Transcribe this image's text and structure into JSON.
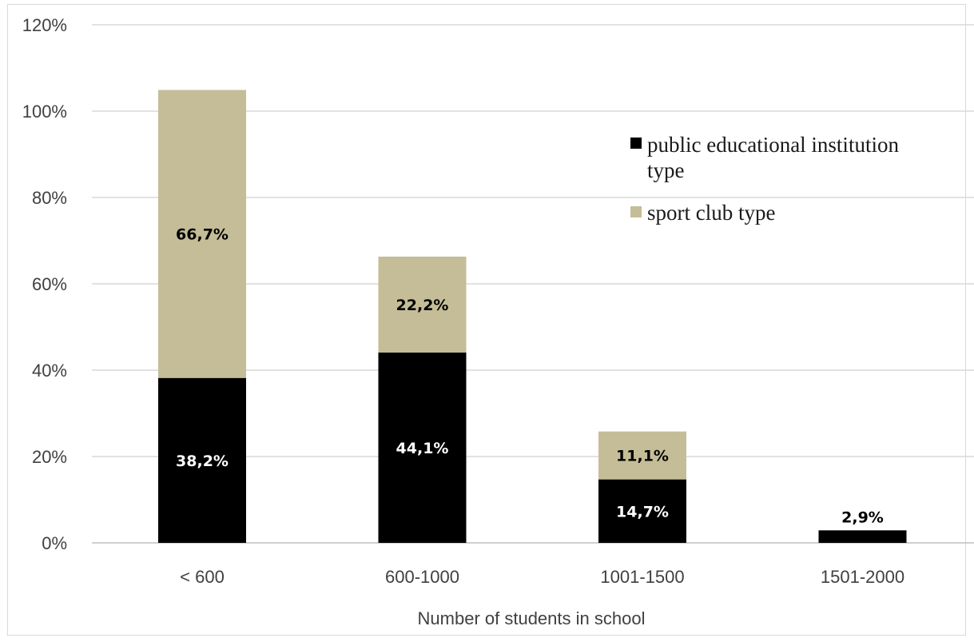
{
  "chart_data": {
    "type": "bar",
    "stacked": true,
    "categories": [
      "< 600",
      "600-1000",
      "1001-1500",
      "1501-2000"
    ],
    "series": [
      {
        "name": "public educational institution type",
        "color": "#000000",
        "values": [
          38.2,
          44.1,
          14.7,
          2.9
        ],
        "labels": [
          "38,2%",
          "44,1%",
          "14,7%",
          "2,9%"
        ]
      },
      {
        "name": "sport club type",
        "color": "#c4bd97",
        "values": [
          66.7,
          22.2,
          11.1,
          0
        ],
        "labels": [
          "66,7%",
          "22,2%",
          "11,1%",
          ""
        ]
      }
    ],
    "xlabel": "Number of students in school",
    "ylabel": "",
    "ylim": [
      0,
      120
    ],
    "yticks": [
      "0%",
      "20%",
      "40%",
      "60%",
      "80%",
      "100%",
      "120%"
    ],
    "grid": true,
    "legend": [
      "public educational institution",
      "type",
      "sport club type"
    ],
    "legend_position": "right"
  }
}
